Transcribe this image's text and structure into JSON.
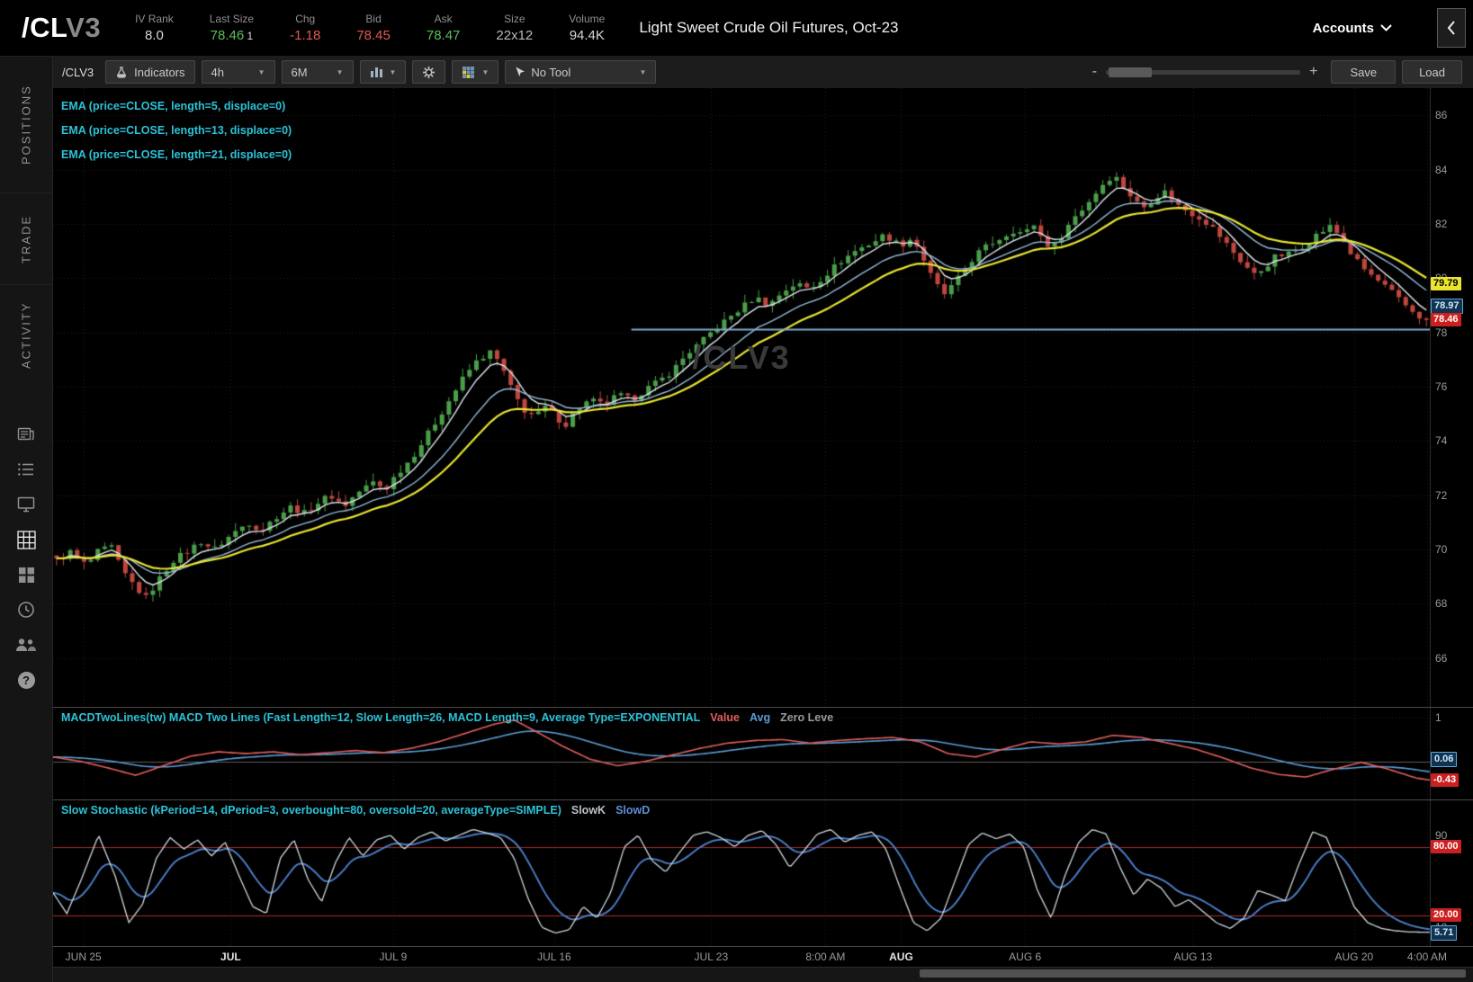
{
  "header": {
    "symbol_main": "/CL",
    "symbol_suffix": "V3",
    "fields": [
      {
        "label": "IV Rank",
        "value": "8.0",
        "color": "#d6d6d6"
      },
      {
        "label": "Last Size",
        "value": "78.46",
        "extra": "1",
        "color": "#5bbf5b"
      },
      {
        "label": "Chg",
        "value": "-1.18",
        "color": "#e05b52"
      },
      {
        "label": "Bid",
        "value": "78.45",
        "color": "#e05b52"
      },
      {
        "label": "Ask",
        "value": "78.47",
        "color": "#5bbf5b"
      },
      {
        "label": "Size",
        "value": "22x12",
        "color": "#b8b8b8"
      },
      {
        "label": "Volume",
        "value": "94.4K",
        "color": "#d6d6d6"
      }
    ],
    "instrument_title": "Light Sweet Crude Oil Futures, Oct-23",
    "accounts_label": "Accounts"
  },
  "sidebar": {
    "tabs": [
      {
        "label": "POSITIONS"
      },
      {
        "label": "TRADE"
      },
      {
        "label": "ACTIVITY"
      }
    ],
    "icons": [
      "news-icon",
      "watchlist-icon",
      "monitor-icon",
      "charts-grid-icon",
      "dashboard-icon",
      "clock-icon",
      "community-icon",
      "help-icon"
    ],
    "active_icon": "charts-grid-icon"
  },
  "toolbar": {
    "symbol_label": "/CLV3",
    "indicators_button": "Indicators",
    "timeframe_value": "4h",
    "range_value": "6M",
    "tool_value": "No Tool",
    "zoom_minus": "-",
    "zoom_plus": "+",
    "save_button": "Save",
    "load_button": "Load"
  },
  "studies": {
    "ema_labels": [
      "EMA (price=CLOSE, length=5, displace=0)",
      "EMA (price=CLOSE, length=13, displace=0)",
      "EMA (price=CLOSE, length=21, displace=0)"
    ],
    "macd_label": "MACDTwoLines(tw) MACD Two Lines (Fast Length=12, Slow Length=26, MACD Length=9, Average Type=EXPONENTIAL",
    "macd_legend": [
      {
        "text": "Value",
        "color": "#e25d5d"
      },
      {
        "text": "Avg",
        "color": "#5b9bd5"
      },
      {
        "text": "Zero Leve",
        "color": "#9a9a9a"
      }
    ],
    "stoch_label": "Slow Stochastic (kPeriod=14, dPeriod=3, overbought=80, oversold=20, averageType=SIMPLE)",
    "stoch_legend": [
      {
        "text": "SlowK",
        "color": "#b9c0c7"
      },
      {
        "text": "SlowD",
        "color": "#5b8ed6"
      }
    ]
  },
  "watermark": "/CLV3",
  "chart_data": {
    "type": "candlestick",
    "symbol": "/CLV3",
    "timeframe": "4h",
    "range": "6M",
    "candle_count": 200,
    "up_color": "#4a9e4a",
    "down_color": "#bf463d",
    "price_axis": {
      "ticks": [
        86,
        84,
        82,
        80,
        78,
        76,
        74,
        72,
        70,
        68,
        66
      ],
      "ylim": [
        64.2,
        87.0
      ]
    },
    "time_axis": {
      "ticks": [
        {
          "label": "JUN 25",
          "f": 0.022
        },
        {
          "label": "JUL",
          "f": 0.129,
          "bold": true
        },
        {
          "label": "JUL 9",
          "f": 0.247
        },
        {
          "label": "JUL 16",
          "f": 0.364
        },
        {
          "label": "JUL 23",
          "f": 0.478
        },
        {
          "label": "8:00 AM",
          "f": 0.561
        },
        {
          "label": "AUG",
          "f": 0.616,
          "bold": true
        },
        {
          "label": "AUG 6",
          "f": 0.706
        },
        {
          "label": "AUG 13",
          "f": 0.828
        },
        {
          "label": "AUG 20",
          "f": 0.945
        },
        {
          "label": "4:00 AM",
          "f": 0.998
        }
      ]
    },
    "price_path": [
      [
        0.0,
        69.6
      ],
      [
        0.01,
        69.9
      ],
      [
        0.022,
        69.4
      ],
      [
        0.03,
        69.9
      ],
      [
        0.04,
        70.1
      ],
      [
        0.048,
        69.2
      ],
      [
        0.058,
        68.6
      ],
      [
        0.065,
        68.2
      ],
      [
        0.075,
        68.9
      ],
      [
        0.085,
        69.6
      ],
      [
        0.095,
        69.9
      ],
      [
        0.105,
        70.3
      ],
      [
        0.115,
        70.0
      ],
      [
        0.129,
        70.6
      ],
      [
        0.14,
        71.0
      ],
      [
        0.15,
        70.7
      ],
      [
        0.16,
        71.2
      ],
      [
        0.172,
        71.6
      ],
      [
        0.18,
        71.3
      ],
      [
        0.19,
        71.7
      ],
      [
        0.2,
        72.0
      ],
      [
        0.21,
        71.6
      ],
      [
        0.22,
        72.1
      ],
      [
        0.232,
        72.5
      ],
      [
        0.24,
        72.2
      ],
      [
        0.247,
        72.7
      ],
      [
        0.258,
        73.3
      ],
      [
        0.268,
        74.0
      ],
      [
        0.278,
        74.8
      ],
      [
        0.288,
        75.6
      ],
      [
        0.298,
        76.4
      ],
      [
        0.308,
        77.0
      ],
      [
        0.318,
        77.3
      ],
      [
        0.326,
        76.6
      ],
      [
        0.334,
        75.7
      ],
      [
        0.342,
        75.1
      ],
      [
        0.35,
        74.9
      ],
      [
        0.358,
        75.3
      ],
      [
        0.364,
        74.9
      ],
      [
        0.372,
        74.6
      ],
      [
        0.38,
        75.2
      ],
      [
        0.39,
        75.5
      ],
      [
        0.4,
        75.3
      ],
      [
        0.41,
        75.7
      ],
      [
        0.42,
        75.5
      ],
      [
        0.43,
        75.9
      ],
      [
        0.44,
        76.2
      ],
      [
        0.45,
        76.6
      ],
      [
        0.46,
        77.2
      ],
      [
        0.47,
        77.6
      ],
      [
        0.478,
        78.0
      ],
      [
        0.49,
        78.5
      ],
      [
        0.5,
        78.9
      ],
      [
        0.51,
        79.3
      ],
      [
        0.52,
        79.0
      ],
      [
        0.53,
        79.5
      ],
      [
        0.54,
        79.8
      ],
      [
        0.55,
        79.6
      ],
      [
        0.561,
        80.1
      ],
      [
        0.572,
        80.6
      ],
      [
        0.583,
        81.0
      ],
      [
        0.595,
        81.3
      ],
      [
        0.605,
        81.6
      ],
      [
        0.616,
        81.2
      ],
      [
        0.625,
        81.5
      ],
      [
        0.632,
        80.8
      ],
      [
        0.64,
        79.9
      ],
      [
        0.648,
        79.4
      ],
      [
        0.656,
        79.8
      ],
      [
        0.664,
        80.4
      ],
      [
        0.672,
        80.9
      ],
      [
        0.68,
        81.2
      ],
      [
        0.69,
        81.5
      ],
      [
        0.7,
        81.8
      ],
      [
        0.706,
        81.6
      ],
      [
        0.714,
        82.0
      ],
      [
        0.72,
        81.4
      ],
      [
        0.727,
        81.1
      ],
      [
        0.734,
        81.6
      ],
      [
        0.742,
        82.2
      ],
      [
        0.75,
        82.6
      ],
      [
        0.758,
        83.1
      ],
      [
        0.766,
        83.6
      ],
      [
        0.772,
        83.8
      ],
      [
        0.78,
        83.3
      ],
      [
        0.788,
        82.8
      ],
      [
        0.795,
        82.6
      ],
      [
        0.802,
        83.0
      ],
      [
        0.81,
        83.2
      ],
      [
        0.818,
        82.7
      ],
      [
        0.828,
        82.4
      ],
      [
        0.836,
        82.2
      ],
      [
        0.845,
        81.8
      ],
      [
        0.855,
        81.2
      ],
      [
        0.865,
        80.6
      ],
      [
        0.875,
        80.1
      ],
      [
        0.882,
        80.4
      ],
      [
        0.89,
        80.8
      ],
      [
        0.9,
        80.9
      ],
      [
        0.91,
        81.2
      ],
      [
        0.92,
        81.6
      ],
      [
        0.93,
        81.9
      ],
      [
        0.938,
        81.5
      ],
      [
        0.945,
        80.9
      ],
      [
        0.953,
        80.4
      ],
      [
        0.962,
        80.0
      ],
      [
        0.972,
        79.6
      ],
      [
        0.982,
        79.1
      ],
      [
        0.992,
        78.7
      ],
      [
        1.0,
        78.4
      ]
    ],
    "emas": [
      {
        "length": 5,
        "color": "#dfe7ef",
        "width": 1.4
      },
      {
        "length": 13,
        "color": "#93b7d6",
        "width": 1.4
      },
      {
        "length": 21,
        "color": "#e8e430",
        "width": 2.2
      }
    ],
    "horizontal_line": {
      "price": 78.1,
      "start_frac": 0.42,
      "color": "#7ea9cc"
    },
    "price_badges": [
      {
        "value": "79.79",
        "bg": "#e8e430",
        "fg": "#000000"
      },
      {
        "value": "78.97",
        "bg": "#10334f",
        "fg": "#cfe8ff",
        "border": "#57a7e0"
      },
      {
        "value": "78.46",
        "bg": "#cc1f1f",
        "fg": "#ffffff"
      }
    ],
    "macd": {
      "ylim": [
        -0.75,
        1.15
      ],
      "value_color": "#e25d5d",
      "avg_color": "#5b9bd5",
      "zero_line_color": "#5a5a5a",
      "axis_ticks": [
        {
          "label": "1",
          "value": 1
        },
        {
          "label": "0",
          "value": 0
        }
      ],
      "badges": [
        {
          "value": "0.06",
          "at": 0.06,
          "bg": "#10334f",
          "fg": "#cfe8ff",
          "border": "#57a7e0"
        },
        {
          "value": "-0.43",
          "at": -0.43,
          "bg": "#cc1f1f",
          "fg": "#ffffff"
        }
      ],
      "value_path": [
        [
          0.0,
          0.1
        ],
        [
          0.02,
          0.0
        ],
        [
          0.04,
          -0.15
        ],
        [
          0.06,
          -0.32
        ],
        [
          0.08,
          -0.1
        ],
        [
          0.1,
          0.12
        ],
        [
          0.12,
          0.22
        ],
        [
          0.14,
          0.18
        ],
        [
          0.16,
          0.22
        ],
        [
          0.18,
          0.15
        ],
        [
          0.2,
          0.2
        ],
        [
          0.22,
          0.25
        ],
        [
          0.24,
          0.2
        ],
        [
          0.26,
          0.3
        ],
        [
          0.28,
          0.45
        ],
        [
          0.3,
          0.65
        ],
        [
          0.32,
          0.85
        ],
        [
          0.335,
          0.95
        ],
        [
          0.35,
          0.7
        ],
        [
          0.37,
          0.35
        ],
        [
          0.39,
          0.05
        ],
        [
          0.41,
          -0.1
        ],
        [
          0.43,
          0.0
        ],
        [
          0.45,
          0.15
        ],
        [
          0.47,
          0.3
        ],
        [
          0.49,
          0.42
        ],
        [
          0.51,
          0.48
        ],
        [
          0.53,
          0.5
        ],
        [
          0.55,
          0.42
        ],
        [
          0.57,
          0.48
        ],
        [
          0.59,
          0.52
        ],
        [
          0.61,
          0.55
        ],
        [
          0.63,
          0.45
        ],
        [
          0.65,
          0.18
        ],
        [
          0.67,
          0.1
        ],
        [
          0.69,
          0.28
        ],
        [
          0.71,
          0.45
        ],
        [
          0.73,
          0.4
        ],
        [
          0.75,
          0.45
        ],
        [
          0.77,
          0.6
        ],
        [
          0.79,
          0.55
        ],
        [
          0.81,
          0.42
        ],
        [
          0.83,
          0.28
        ],
        [
          0.85,
          0.08
        ],
        [
          0.87,
          -0.15
        ],
        [
          0.89,
          -0.3
        ],
        [
          0.91,
          -0.36
        ],
        [
          0.93,
          -0.18
        ],
        [
          0.95,
          -0.02
        ],
        [
          0.97,
          -0.18
        ],
        [
          0.99,
          -0.38
        ],
        [
          1.0,
          -0.43
        ]
      ]
    },
    "stochastic": {
      "overbought": 80,
      "oversold": 20,
      "band_color": "#aa2a2a",
      "k_color": "#cfd6dd",
      "d_color": "#4a7fc9",
      "axis_ticks": [
        {
          "label": "90",
          "value": 90
        },
        {
          "label": "10",
          "value": 10
        }
      ],
      "badges": [
        {
          "value": "80.00",
          "at": 80,
          "bg": "#cc1f1f",
          "fg": "#ffffff"
        },
        {
          "value": "20.00",
          "at": 20,
          "bg": "#cc1f1f",
          "fg": "#ffffff"
        },
        {
          "value": "5.71",
          "at": 5.71,
          "bg": "#10334f",
          "fg": "#cfe8ff",
          "border": "#57a7e0"
        }
      ],
      "k_path": [
        [
          0.0,
          40
        ],
        [
          0.01,
          22
        ],
        [
          0.02,
          50
        ],
        [
          0.033,
          90
        ],
        [
          0.045,
          55
        ],
        [
          0.055,
          14
        ],
        [
          0.065,
          30
        ],
        [
          0.075,
          70
        ],
        [
          0.085,
          88
        ],
        [
          0.095,
          78
        ],
        [
          0.105,
          86
        ],
        [
          0.115,
          72
        ],
        [
          0.125,
          84
        ],
        [
          0.135,
          55
        ],
        [
          0.145,
          28
        ],
        [
          0.155,
          22
        ],
        [
          0.165,
          70
        ],
        [
          0.175,
          86
        ],
        [
          0.185,
          52
        ],
        [
          0.195,
          32
        ],
        [
          0.205,
          66
        ],
        [
          0.215,
          88
        ],
        [
          0.225,
          72
        ],
        [
          0.235,
          86
        ],
        [
          0.245,
          90
        ],
        [
          0.255,
          78
        ],
        [
          0.265,
          88
        ],
        [
          0.275,
          93
        ],
        [
          0.285,
          85
        ],
        [
          0.295,
          90
        ],
        [
          0.305,
          95
        ],
        [
          0.315,
          92
        ],
        [
          0.325,
          88
        ],
        [
          0.335,
          70
        ],
        [
          0.345,
          35
        ],
        [
          0.355,
          10
        ],
        [
          0.365,
          5
        ],
        [
          0.375,
          8
        ],
        [
          0.385,
          28
        ],
        [
          0.395,
          18
        ],
        [
          0.405,
          40
        ],
        [
          0.415,
          80
        ],
        [
          0.425,
          90
        ],
        [
          0.435,
          68
        ],
        [
          0.445,
          58
        ],
        [
          0.455,
          75
        ],
        [
          0.465,
          90
        ],
        [
          0.475,
          93
        ],
        [
          0.485,
          88
        ],
        [
          0.495,
          80
        ],
        [
          0.505,
          90
        ],
        [
          0.515,
          94
        ],
        [
          0.525,
          82
        ],
        [
          0.535,
          62
        ],
        [
          0.545,
          76
        ],
        [
          0.555,
          91
        ],
        [
          0.565,
          95
        ],
        [
          0.575,
          84
        ],
        [
          0.585,
          90
        ],
        [
          0.595,
          93
        ],
        [
          0.605,
          78
        ],
        [
          0.615,
          45
        ],
        [
          0.625,
          14
        ],
        [
          0.635,
          7
        ],
        [
          0.645,
          18
        ],
        [
          0.655,
          50
        ],
        [
          0.665,
          82
        ],
        [
          0.675,
          92
        ],
        [
          0.685,
          87
        ],
        [
          0.695,
          91
        ],
        [
          0.705,
          80
        ],
        [
          0.715,
          42
        ],
        [
          0.725,
          18
        ],
        [
          0.735,
          55
        ],
        [
          0.745,
          84
        ],
        [
          0.755,
          95
        ],
        [
          0.765,
          91
        ],
        [
          0.775,
          62
        ],
        [
          0.785,
          38
        ],
        [
          0.795,
          52
        ],
        [
          0.805,
          44
        ],
        [
          0.815,
          28
        ],
        [
          0.825,
          34
        ],
        [
          0.835,
          24
        ],
        [
          0.845,
          14
        ],
        [
          0.855,
          9
        ],
        [
          0.865,
          18
        ],
        [
          0.875,
          42
        ],
        [
          0.885,
          38
        ],
        [
          0.895,
          33
        ],
        [
          0.905,
          65
        ],
        [
          0.915,
          93
        ],
        [
          0.925,
          88
        ],
        [
          0.935,
          58
        ],
        [
          0.945,
          28
        ],
        [
          0.955,
          14
        ],
        [
          0.965,
          9
        ],
        [
          0.975,
          7
        ],
        [
          0.985,
          6
        ],
        [
          1.0,
          5.71
        ]
      ]
    }
  }
}
